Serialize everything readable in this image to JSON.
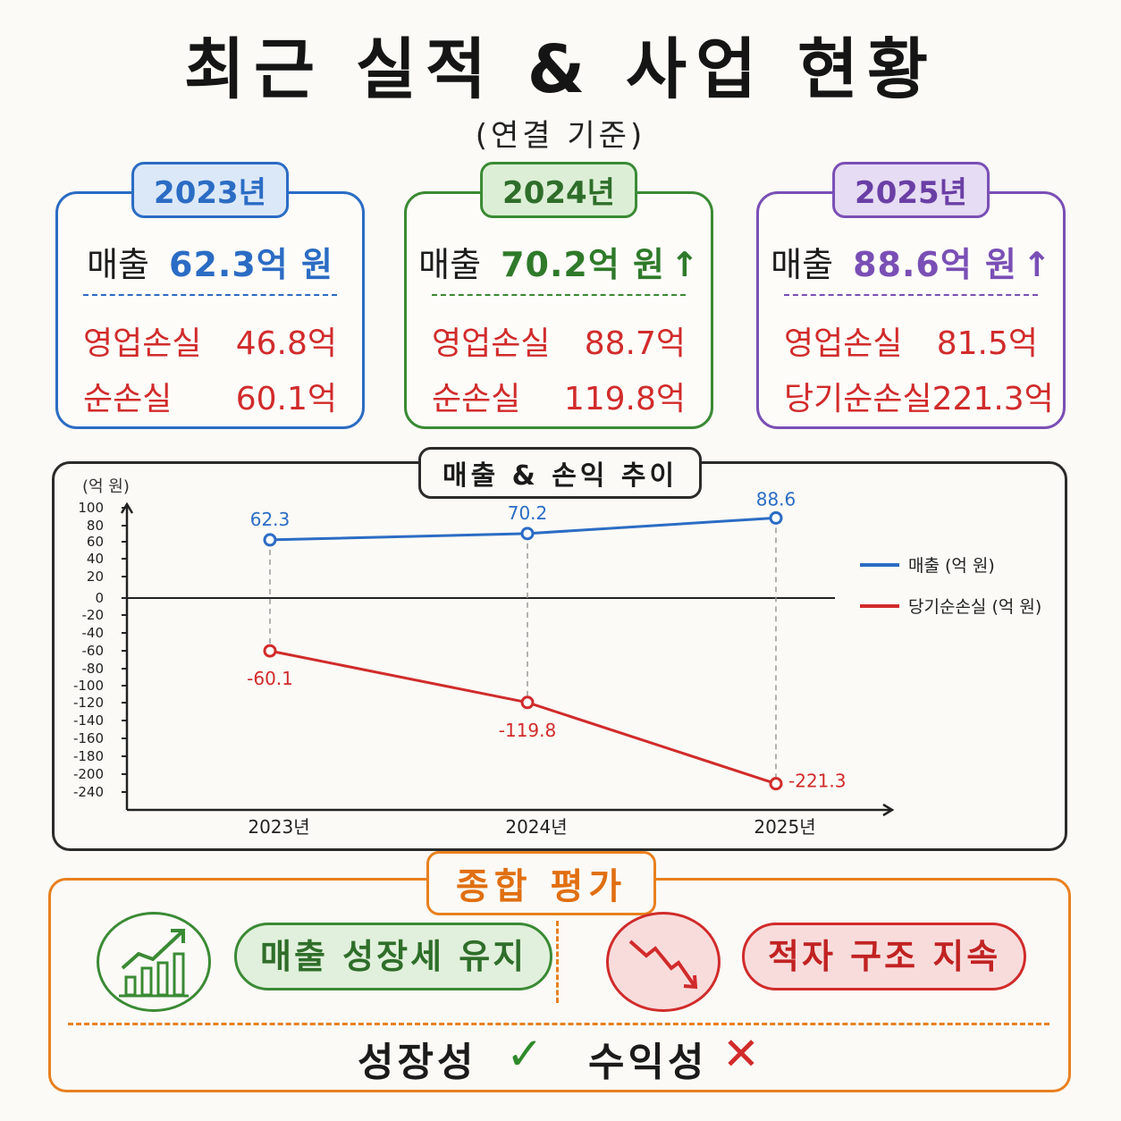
{
  "title": "최근 실적 & 사업 현황",
  "subtitle": "(연결 기준)",
  "colors": {
    "y2023": "#2b6cc4",
    "y2024": "#3a8a34",
    "y2025": "#7a4fb5",
    "loss": "#d12b2b",
    "eval": "#e8801f"
  },
  "cards": [
    {
      "year": "2023년",
      "revenue_label": "매출",
      "revenue_value": "62.3억 원",
      "arrow": "",
      "row1_label": "영업손실",
      "row1_value": "46.8억",
      "row2_label": "순손실",
      "row2_value": "60.1억"
    },
    {
      "year": "2024년",
      "revenue_label": "매출",
      "revenue_value": "70.2억 원",
      "arrow": "↑",
      "row1_label": "영업손실",
      "row1_value": "88.7억",
      "row2_label": "순손실",
      "row2_value": "119.8억"
    },
    {
      "year": "2025년",
      "revenue_label": "매출",
      "revenue_value": "88.6억 원",
      "arrow": "↑",
      "row1_label": "영업손실",
      "row1_value": "81.5억",
      "row2_label": "당기순손실",
      "row2_value": "221.3억"
    }
  ],
  "chart_title": "매출 & 손익 추이",
  "chart_data": {
    "type": "line",
    "title": "매출 & 손익 추이",
    "ylabel": "(억 원)",
    "categories": [
      "2023년",
      "2024년",
      "2025년"
    ],
    "yticks": [
      100,
      80,
      60,
      40,
      20,
      0,
      -20,
      -40,
      -60,
      -80,
      -100,
      -120,
      -140,
      -160,
      -180,
      -200,
      -240
    ],
    "series": [
      {
        "name": "매출 (억 원)",
        "values": [
          62.3,
          70.2,
          88.6
        ],
        "labels": [
          "62.3",
          "70.2",
          "88.6"
        ],
        "color": "#2b6cc4"
      },
      {
        "name": "당기순손실 (억 원)",
        "values": [
          -60.1,
          -119.8,
          -221.3
        ],
        "labels": [
          "-60.1",
          "-119.8",
          "-221.3"
        ],
        "color": "#d12b2b"
      }
    ],
    "legend": "right",
    "grid": false
  },
  "evaluation": {
    "title": "종합 평가",
    "good_label": "매출 성장세 유지",
    "bad_label": "적자 구조 지속",
    "growth_label": "성장성",
    "growth_mark": "✓",
    "profit_label": "수익성",
    "profit_mark": "✕"
  }
}
